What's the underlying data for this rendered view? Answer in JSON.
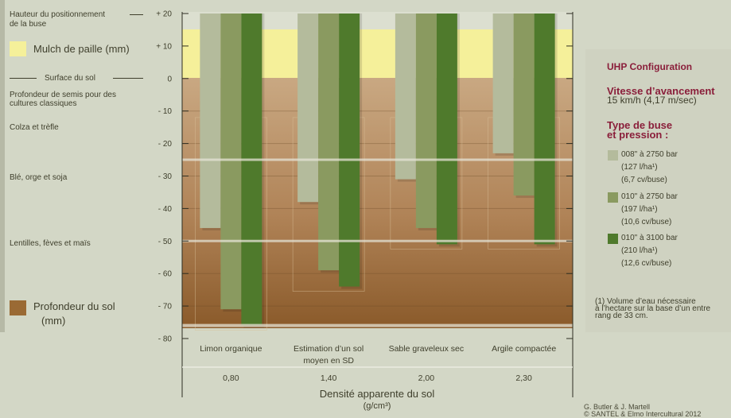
{
  "left_panel": {
    "nozzle_height_label_1": "Hauteur du positionnement",
    "nozzle_height_label_2": "de la buse",
    "mulch_label": "Mulch de paille (mm)",
    "soil_surface_label": "Surface du sol",
    "seeding_depth_label_1": "Profondeur de semis pour des",
    "seeding_depth_label_2": "cultures classiques",
    "crop_1": "Colza et trèfle",
    "crop_2": "Blé, orge et soja",
    "crop_3": "Lentilles, fèves et maïs",
    "soil_depth_label_1": "Profondeur du sol",
    "soil_depth_label_2": "(mm)"
  },
  "colors": {
    "mulch": "#f5f09a",
    "soil_top": "#c7a57e",
    "soil_bottom": "#8a5a2a",
    "series_light": "#b4bb9c",
    "series_mid": "#8a9a60",
    "series_dark": "#4f7a2c"
  },
  "chart_data": {
    "type": "bar",
    "categories": [
      "Limon organique",
      "Estimation d’un sol moyen en SD",
      "Sable graveleux sec",
      "Argile compactée"
    ],
    "densities": [
      "0,80",
      "1,40",
      "2,00",
      "2,30"
    ],
    "xlabel": "Densité apparente du sol",
    "xlabel_unit": "(g/cm³)",
    "ylim": [
      -80,
      20
    ],
    "yticks": [
      "+ 20",
      "+ 10",
      "0",
      "- 10",
      "- 20",
      "- 30",
      "- 40",
      "- 50",
      "- 60",
      "- 70",
      "- 80"
    ],
    "bar_top": 20,
    "series": [
      {
        "name": "008\" à 2750 bar",
        "values": [
          -46,
          -38,
          -31,
          -23
        ]
      },
      {
        "name": "010\" à 2750 bar",
        "values": [
          -71,
          -59,
          -46,
          -36
        ]
      },
      {
        "name": "010\" à 3100 bar",
        "values": [
          -76,
          -64,
          -51,
          -51
        ]
      }
    ],
    "reference_lines": [
      -25,
      -50,
      -76
    ]
  },
  "legend_panel": {
    "title": "UHP Configuration",
    "speed_title": "Vitesse d’avancement",
    "speed_value": "15 km/h (4,17 m/sec)",
    "nozzle_title_1": "Type de buse",
    "nozzle_title_2": "et pression :",
    "items": [
      {
        "line1": "008\" à 2750 bar",
        "line2": "(127 l/ha¹)",
        "line3": "(6,7 cv/buse)"
      },
      {
        "line1": "010\" à 2750 bar",
        "line2": "(197 l/ha¹)",
        "line3": "(10,6 cv/buse)"
      },
      {
        "line1": "010\" à 3100 bar",
        "line2": "(210 l/ha¹)",
        "line3": "(12,6 cv/buse)"
      }
    ],
    "footnote_1": "(1) Volume d’eau nécessaire",
    "footnote_2": "à l’hectare sur la base d’un entre",
    "footnote_3": "rang de 33 cm."
  },
  "credits": {
    "line1": "G. Butler & J. Martell",
    "line2": "© SANTEL & Elmo Intercultural 2012"
  }
}
